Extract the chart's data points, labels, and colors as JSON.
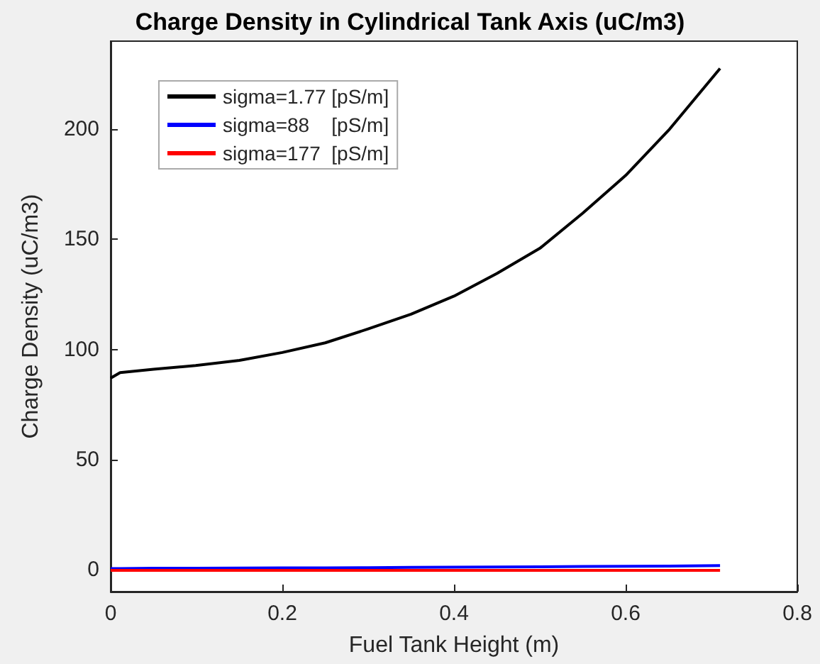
{
  "chart_data": {
    "type": "line",
    "title": "Charge Density in Cylindrical Tank Axis (uC/m3)",
    "xlabel": "Fuel Tank Height (m)",
    "ylabel": "Charge Density (uC/m3)",
    "x": [
      0,
      0.011,
      0.05,
      0.099,
      0.15,
      0.2,
      0.25,
      0.3,
      0.35,
      0.4,
      0.45,
      0.5,
      0.55,
      0.6,
      0.65,
      0.71
    ],
    "series": [
      {
        "name": "sigma=1.77 [pS/m]",
        "color": "#000000",
        "values": [
          87,
          89.5,
          91,
          92.7,
          95,
          98.6,
          103,
          109.3,
          116,
          124.2,
          134.5,
          145.9,
          161.9,
          179,
          199.5,
          227.6
        ]
      },
      {
        "name": "sigma=88    [pS/m]",
        "color": "#0000ff",
        "values": [
          0.5,
          0.5,
          0.6,
          0.6,
          0.7,
          0.8,
          0.8,
          0.9,
          1,
          1.1,
          1.2,
          1.3,
          1.4,
          1.5,
          1.6,
          1.8
        ]
      },
      {
        "name": "sigma=177  [pS/m]",
        "color": "#ff0000",
        "values": [
          -0.3,
          -0.3,
          -0.3,
          -0.3,
          -0.3,
          -0.3,
          -0.3,
          -0.3,
          -0.3,
          -0.3,
          -0.3,
          -0.3,
          -0.3,
          -0.3,
          -0.3,
          -0.3
        ]
      }
    ],
    "xlim": [
      0,
      0.8
    ],
    "xticks": [
      0,
      0.2,
      0.4,
      0.6,
      0.8
    ],
    "ylim": [
      -10,
      240
    ],
    "yticks": [
      0,
      50,
      100,
      150,
      200
    ],
    "grid": false,
    "legend": "top left",
    "marker": "none",
    "line_style": "solid"
  }
}
